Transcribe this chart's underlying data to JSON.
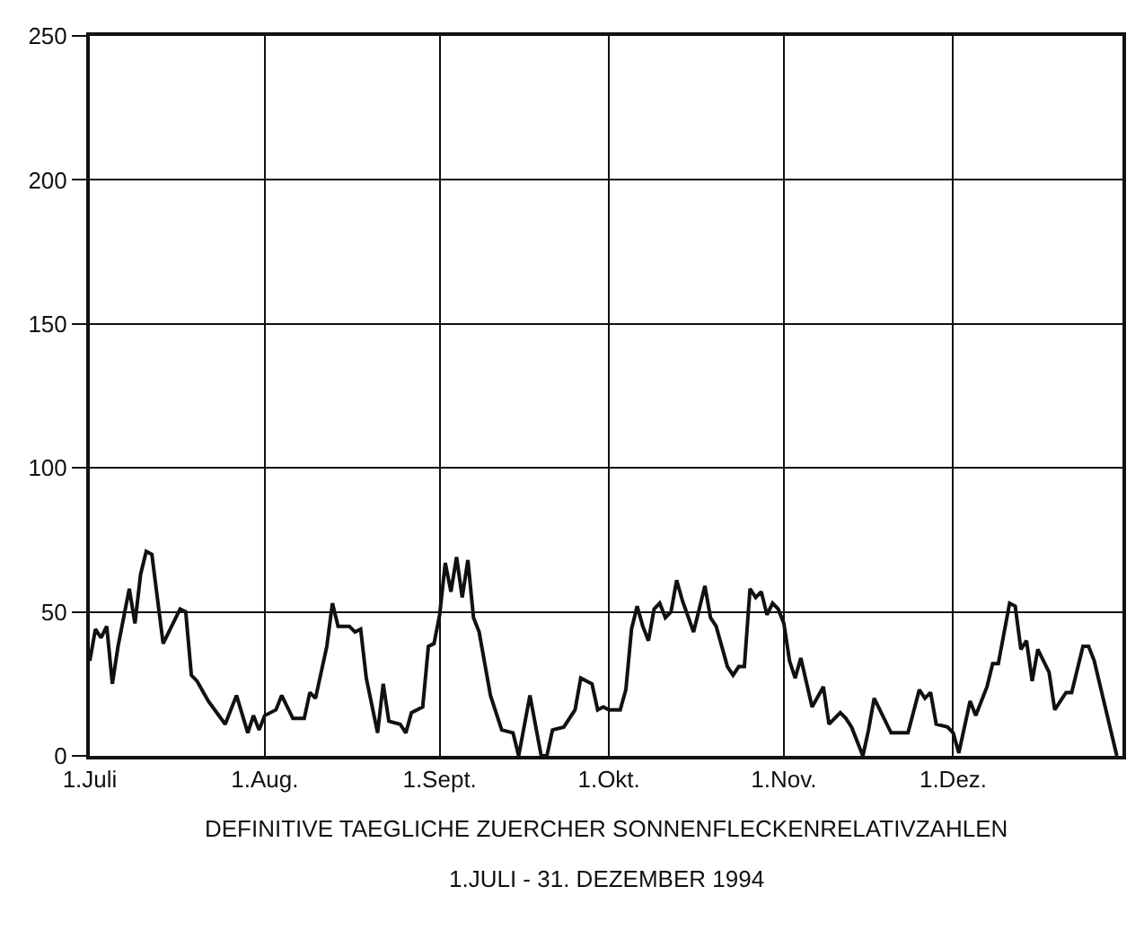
{
  "chart_data": {
    "type": "line",
    "color": "#111111",
    "line_style": "solid",
    "marker": "none",
    "grid": true,
    "legend": false,
    "x": [
      "1994-07-01",
      "1994-07-02",
      "1994-07-03",
      "1994-07-04",
      "1994-07-05",
      "1994-07-06",
      "1994-07-08",
      "1994-07-09",
      "1994-07-10",
      "1994-07-11",
      "1994-07-12",
      "1994-07-14",
      "1994-07-17",
      "1994-07-18",
      "1994-07-19",
      "1994-07-20",
      "1994-07-22",
      "1994-07-25",
      "1994-07-27",
      "1994-07-29",
      "1994-07-30",
      "1994-07-31",
      "1994-08-01",
      "1994-08-03",
      "1994-08-04",
      "1994-08-06",
      "1994-08-08",
      "1994-08-09",
      "1994-08-10",
      "1994-08-12",
      "1994-08-13",
      "1994-08-14",
      "1994-08-16",
      "1994-08-17",
      "1994-08-18",
      "1994-08-19",
      "1994-08-21",
      "1994-08-22",
      "1994-08-23",
      "1994-08-25",
      "1994-08-26",
      "1994-08-27",
      "1994-08-29",
      "1994-08-30",
      "1994-08-31",
      "1994-09-01",
      "1994-09-02",
      "1994-09-03",
      "1994-09-04",
      "1994-09-05",
      "1994-09-06",
      "1994-09-07",
      "1994-09-08",
      "1994-09-10",
      "1994-09-12",
      "1994-09-14",
      "1994-09-15",
      "1994-09-17",
      "1994-09-19",
      "1994-09-20",
      "1994-09-21",
      "1994-09-23",
      "1994-09-25",
      "1994-09-26",
      "1994-09-28",
      "1994-09-29",
      "1994-09-30",
      "1994-10-01",
      "1994-10-03",
      "1994-10-04",
      "1994-10-05",
      "1994-10-06",
      "1994-10-07",
      "1994-10-08",
      "1994-10-09",
      "1994-10-10",
      "1994-10-11",
      "1994-10-12",
      "1994-10-13",
      "1994-10-14",
      "1994-10-16",
      "1994-10-18",
      "1994-10-19",
      "1994-10-20",
      "1994-10-22",
      "1994-10-23",
      "1994-10-24",
      "1994-10-25",
      "1994-10-26",
      "1994-10-27",
      "1994-10-28",
      "1994-10-29",
      "1994-10-30",
      "1994-10-31",
      "1994-11-01",
      "1994-11-02",
      "1994-11-03",
      "1994-11-04",
      "1994-11-06",
      "1994-11-08",
      "1994-11-09",
      "1994-11-11",
      "1994-11-12",
      "1994-11-13",
      "1994-11-15",
      "1994-11-16",
      "1994-11-17",
      "1994-11-18",
      "1994-11-20",
      "1994-11-21",
      "1994-11-23",
      "1994-11-25",
      "1994-11-26",
      "1994-11-27",
      "1994-11-28",
      "1994-11-30",
      "1994-12-01",
      "1994-12-02",
      "1994-12-04",
      "1994-12-05",
      "1994-12-07",
      "1994-12-08",
      "1994-12-09",
      "1994-12-11",
      "1994-12-12",
      "1994-12-13",
      "1994-12-14",
      "1994-12-15",
      "1994-12-16",
      "1994-12-18",
      "1994-12-19",
      "1994-12-21",
      "1994-12-22",
      "1994-12-24",
      "1994-12-25",
      "1994-12-26",
      "1994-12-30"
    ],
    "values": [
      33,
      44,
      41,
      45,
      25,
      38,
      58,
      46,
      63,
      71,
      70,
      39,
      51,
      50,
      28,
      26,
      19,
      11,
      21,
      8,
      14,
      9,
      14,
      16,
      21,
      13,
      13,
      22,
      20,
      38,
      53,
      45,
      45,
      43,
      44,
      27,
      8,
      25,
      12,
      11,
      8,
      15,
      17,
      38,
      39,
      49,
      67,
      57,
      69,
      55,
      68,
      48,
      43,
      21,
      9,
      8,
      0,
      21,
      0,
      0,
      9,
      10,
      16,
      27,
      25,
      16,
      17,
      16,
      16,
      23,
      44,
      52,
      45,
      40,
      51,
      53,
      48,
      50,
      61,
      54,
      43,
      59,
      48,
      45,
      31,
      28,
      31,
      31,
      58,
      55,
      57,
      49,
      53,
      51,
      46,
      33,
      27,
      34,
      17,
      24,
      11,
      15,
      13,
      10,
      0,
      9,
      20,
      16,
      8,
      8,
      8,
      23,
      20,
      22,
      11,
      10,
      8,
      1,
      19,
      14,
      24,
      32,
      32,
      53,
      52,
      37,
      40,
      26,
      37,
      29,
      16,
      22,
      22,
      38,
      38,
      33,
      0
    ],
    "xlim": [
      "1994-07-01",
      "1994-12-31"
    ],
    "xticks": [
      {
        "value": "1994-07-01",
        "label": "1.Juli"
      },
      {
        "value": "1994-08-01",
        "label": "1.Aug."
      },
      {
        "value": "1994-09-01",
        "label": "1.Sept."
      },
      {
        "value": "1994-10-01",
        "label": "1.Okt."
      },
      {
        "value": "1994-11-01",
        "label": "1.Nov."
      },
      {
        "value": "1994-12-01",
        "label": "1.Dez."
      }
    ],
    "ylim": [
      0,
      250
    ],
    "yticks": [
      0,
      50,
      100,
      150,
      200,
      250
    ],
    "annotations": [
      "DEFINITIVE TAEGLICHE ZUERCHER SONNENFLECKENRELATIVZAHLEN",
      "1.JULI - 31. DEZEMBER 1994"
    ]
  }
}
